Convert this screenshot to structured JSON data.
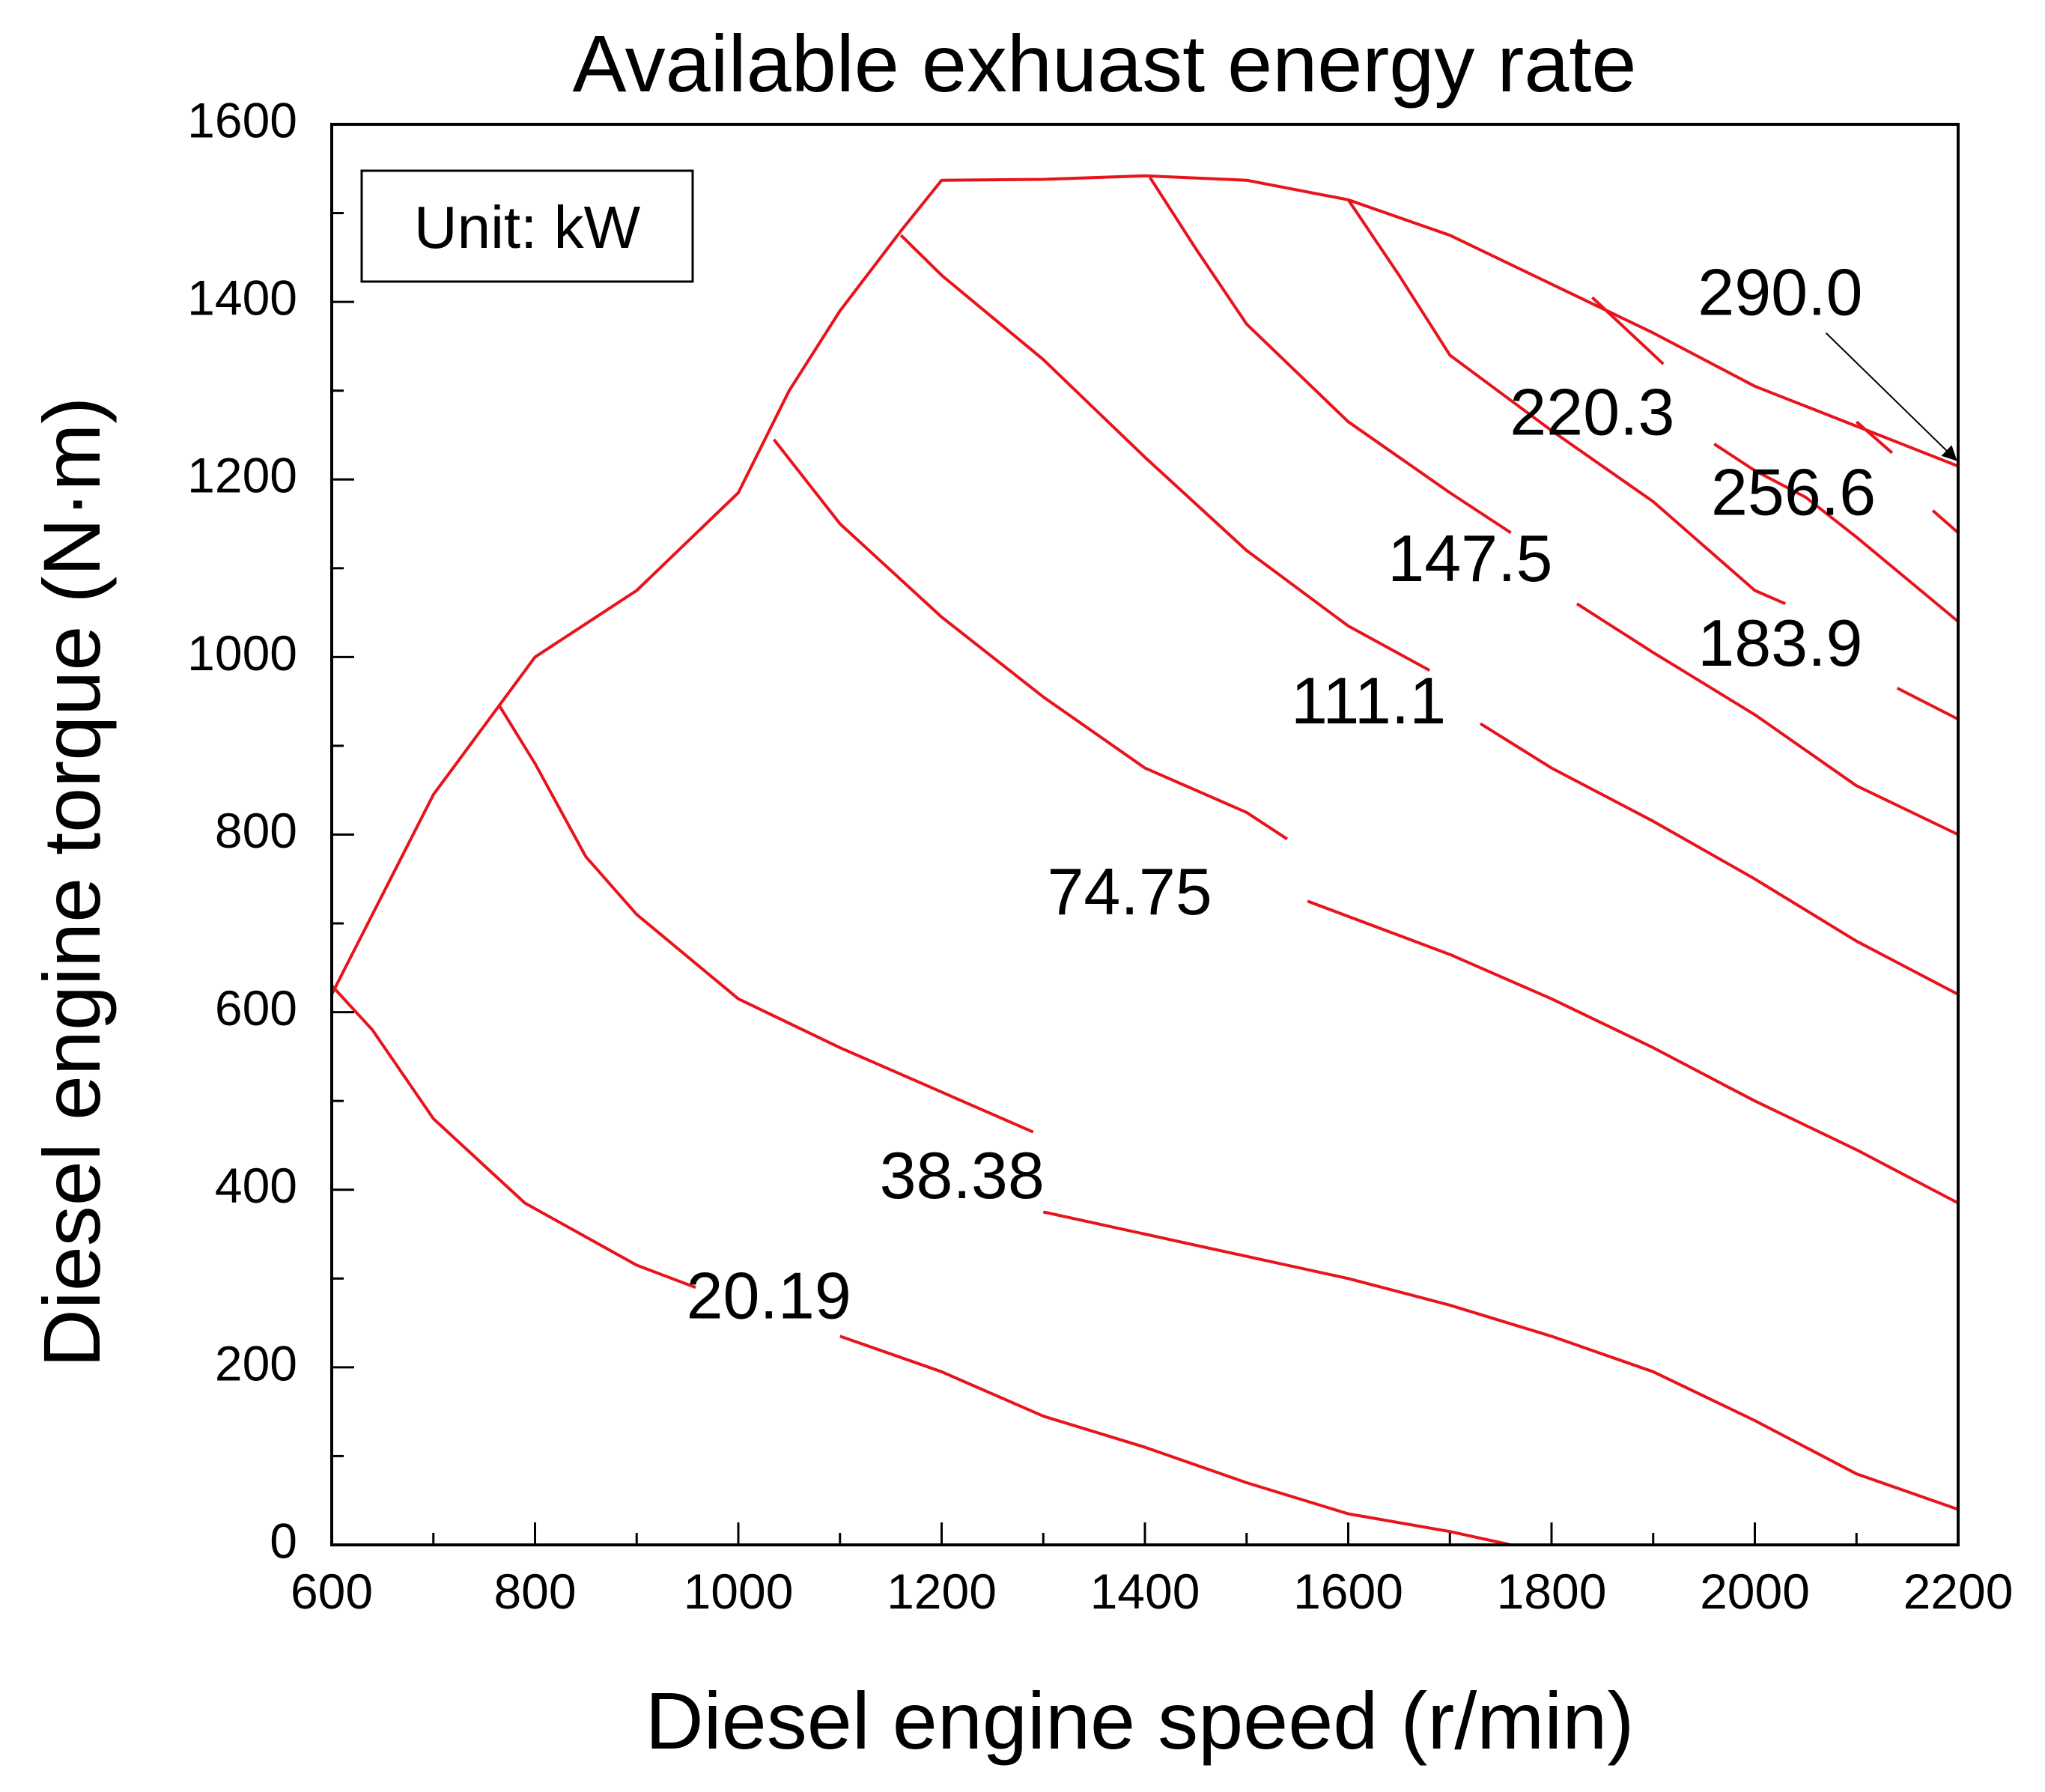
{
  "chart_data": {
    "type": "contour",
    "title": "Available exhuast energy rate",
    "xlabel": "Diesel engine speed (r/min)",
    "ylabel": "Diesel engine torque (N·m)",
    "xlim": [
      600,
      2200
    ],
    "ylim": [
      0,
      1600
    ],
    "x_ticks": [
      600,
      800,
      1000,
      1200,
      1400,
      1600,
      1800,
      2000,
      2200
    ],
    "y_ticks": [
      0,
      200,
      400,
      600,
      800,
      1000,
      1200,
      1400,
      1600
    ],
    "unit_box": "Unit: kW",
    "line_color": "#e8141c",
    "boundary": [
      [
        600,
        620
      ],
      [
        700,
        845
      ],
      [
        800,
        1000
      ],
      [
        900,
        1075
      ],
      [
        1000,
        1185
      ],
      [
        1050,
        1300
      ],
      [
        1100,
        1390
      ],
      [
        1160,
        1480
      ],
      [
        1200,
        1537
      ],
      [
        1300,
        1538
      ],
      [
        1400,
        1542
      ],
      [
        1500,
        1537
      ],
      [
        1600,
        1515
      ],
      [
        1700,
        1475
      ],
      [
        1800,
        1420
      ],
      [
        1900,
        1365
      ],
      [
        2000,
        1305
      ],
      [
        2100,
        1260
      ],
      [
        2200,
        1215
      ]
    ],
    "contours": [
      {
        "label": "20.19",
        "label_pos": [
          1030,
          275
        ],
        "segments": [
          [
            [
              600,
              630
            ],
            [
              640,
              580
            ],
            [
              700,
              480
            ],
            [
              790,
              385
            ],
            [
              900,
              315
            ],
            [
              958,
              290
            ]
          ],
          [
            [
              1100,
              235
            ],
            [
              1200,
              195
            ],
            [
              1300,
              145
            ],
            [
              1400,
              110
            ],
            [
              1500,
              70
            ],
            [
              1600,
              35
            ],
            [
              1700,
              15
            ],
            [
              1760,
              0
            ]
          ]
        ]
      },
      {
        "label": "38.38",
        "label_pos": [
          1220,
          410
        ],
        "segments": [
          [
            [
              765,
              945
            ],
            [
              800,
              880
            ],
            [
              850,
              775
            ],
            [
              900,
              710
            ],
            [
              1000,
              615
            ],
            [
              1100,
              560
            ],
            [
              1200,
              510
            ],
            [
              1290,
              465
            ]
          ],
          [
            [
              1300,
              375
            ],
            [
              1400,
              350
            ],
            [
              1500,
              325
            ],
            [
              1600,
              300
            ],
            [
              1700,
              270
            ],
            [
              1800,
              235
            ],
            [
              1900,
              195
            ],
            [
              2000,
              140
            ],
            [
              2100,
              80
            ],
            [
              2200,
              40
            ]
          ]
        ]
      },
      {
        "label": "74.75",
        "label_pos": [
          1385,
          730
        ],
        "segments": [
          [
            [
              1035,
              1245
            ],
            [
              1100,
              1150
            ],
            [
              1200,
              1045
            ],
            [
              1300,
              955
            ],
            [
              1400,
              875
            ],
            [
              1500,
              825
            ],
            [
              1540,
              795
            ]
          ],
          [
            [
              1560,
              725
            ],
            [
              1700,
              665
            ],
            [
              1800,
              615
            ],
            [
              1900,
              560
            ],
            [
              2000,
              500
            ],
            [
              2100,
              445
            ],
            [
              2200,
              385
            ]
          ]
        ]
      },
      {
        "label": "111.1",
        "label_pos": [
          1620,
          945
        ],
        "segments": [
          [
            [
              1160,
              1475
            ],
            [
              1200,
              1430
            ],
            [
              1300,
              1335
            ],
            [
              1400,
              1225
            ],
            [
              1500,
              1120
            ],
            [
              1600,
              1035
            ],
            [
              1680,
              985
            ]
          ],
          [
            [
              1730,
              925
            ],
            [
              1800,
              875
            ],
            [
              1900,
              815
            ],
            [
              2000,
              750
            ],
            [
              2100,
              680
            ],
            [
              2200,
              620
            ]
          ]
        ]
      },
      {
        "label": "147.5",
        "label_pos": [
          1720,
          1105
        ],
        "segments": [
          [
            [
              1405,
              1540
            ],
            [
              1450,
              1460
            ],
            [
              1500,
              1375
            ],
            [
              1600,
              1265
            ],
            [
              1700,
              1185
            ],
            [
              1760,
              1140
            ]
          ],
          [
            [
              1825,
              1060
            ],
            [
              1900,
              1005
            ],
            [
              2000,
              935
            ],
            [
              2100,
              855
            ],
            [
              2200,
              800
            ]
          ]
        ]
      },
      {
        "label": "183.9",
        "label_pos": [
          2025,
          1010
        ],
        "segments": [
          [
            [
              1600,
              1515
            ],
            [
              1650,
              1430
            ],
            [
              1700,
              1340
            ],
            [
              1800,
              1255
            ],
            [
              1900,
              1175
            ],
            [
              2000,
              1075
            ],
            [
              2030,
              1060
            ]
          ],
          [
            [
              2140,
              965
            ],
            [
              2200,
              930
            ]
          ]
        ]
      },
      {
        "label": "220.3",
        "label_pos": [
          1840,
          1270
        ],
        "segments": [
          [
            [
              1840,
              1405
            ],
            [
              1910,
              1330
            ]
          ],
          [
            [
              1960,
              1240
            ],
            [
              2000,
              1210
            ],
            [
              2050,
              1180
            ],
            [
              2100,
              1135
            ],
            [
              2200,
              1040
            ]
          ]
        ]
      },
      {
        "label": "256.6",
        "label_pos": [
          2038,
          1180
        ],
        "segments": [
          [
            [
              2100,
              1265
            ],
            [
              2135,
              1230
            ]
          ],
          [
            [
              2175,
              1165
            ],
            [
              2200,
              1140
            ]
          ]
        ]
      },
      {
        "label": "290.0",
        "label_pos": [
          2025,
          1405
        ],
        "segments": []
      }
    ],
    "annotation_arrow": {
      "from": [
        2070,
        1365
      ],
      "to": [
        2198,
        1222
      ]
    }
  }
}
